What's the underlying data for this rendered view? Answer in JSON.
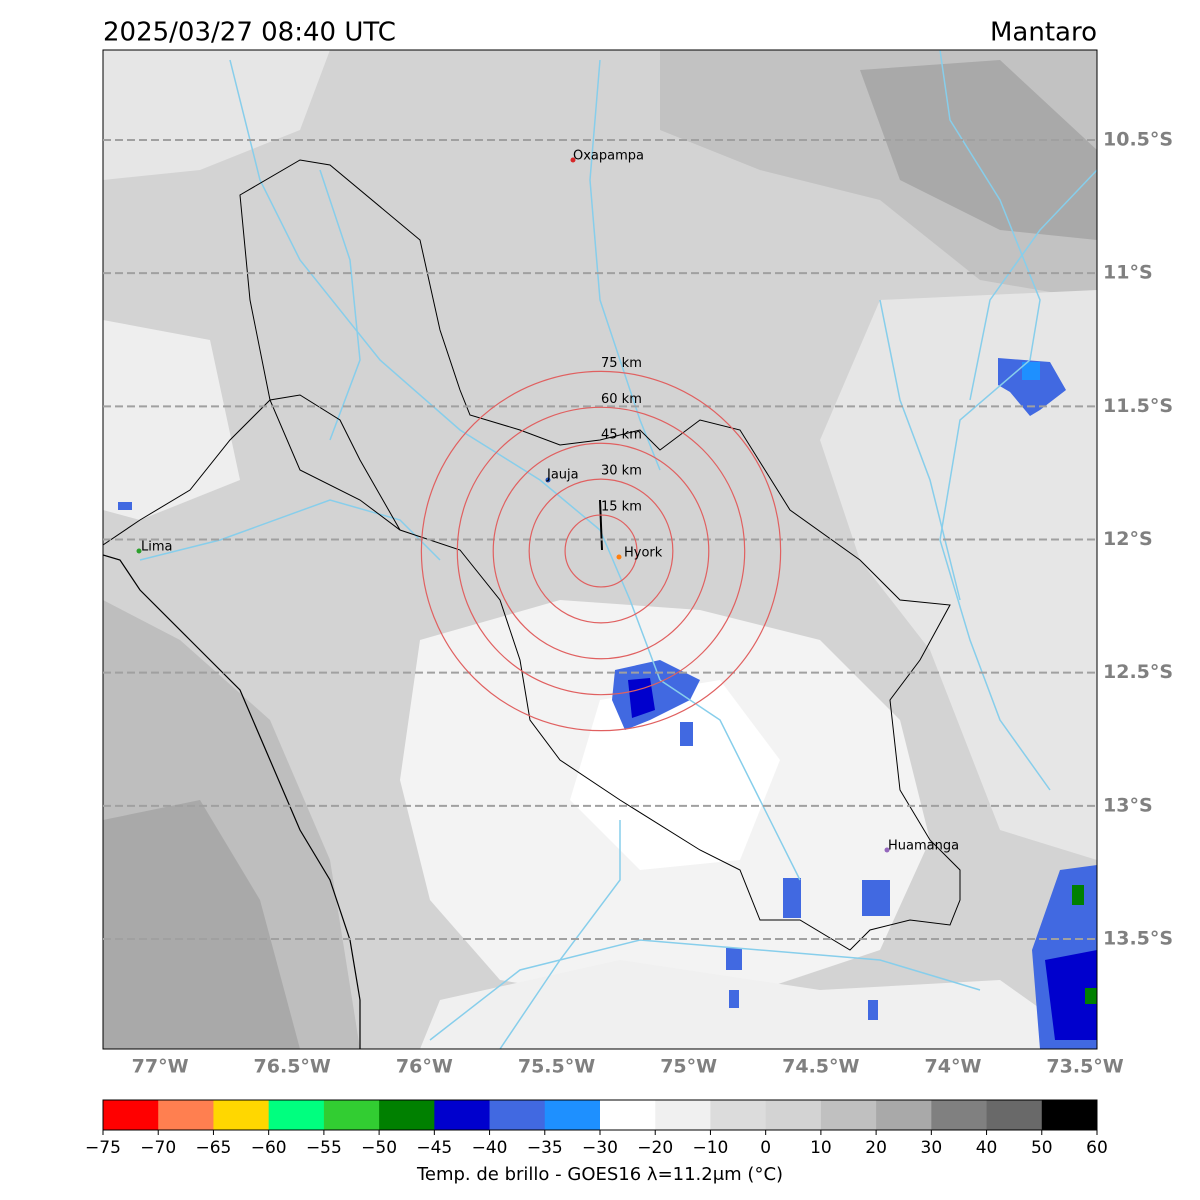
{
  "title": "2025/03/27 08:40 UTC",
  "location": "Mantaro",
  "lon_lim": [
    -77.216,
    -73.455
  ],
  "lat_lim": [
    -13.913,
    -10.162
  ],
  "lon_ticks": [
    {
      "value": -77,
      "label": "77°W"
    },
    {
      "value": -76.5,
      "label": "76.5°W"
    },
    {
      "value": -76,
      "label": "76°W"
    },
    {
      "value": -75.5,
      "label": "75.5°W"
    },
    {
      "value": -75,
      "label": "75°W"
    },
    {
      "value": -74.5,
      "label": "74.5°W"
    },
    {
      "value": -74,
      "label": "74°W"
    },
    {
      "value": -73.5,
      "label": "73.5°W"
    }
  ],
  "lat_ticks": [
    {
      "value": -10.5,
      "label": "10.5°S"
    },
    {
      "value": -11,
      "label": "11°S"
    },
    {
      "value": -11.5,
      "label": "11.5°S"
    },
    {
      "value": -12,
      "label": "12°S"
    },
    {
      "value": -12.5,
      "label": "12.5°S"
    },
    {
      "value": -13,
      "label": "13°S"
    },
    {
      "value": -13.5,
      "label": "13.5°S"
    }
  ],
  "grid": true,
  "cities": [
    {
      "name": "Oxapampa",
      "color": "#d62728"
    },
    {
      "name": "Jauja",
      "color": "#1f4fb4"
    },
    {
      "name": "Lima",
      "color": "#2ca02c"
    },
    {
      "name": "Hyork",
      "color": "#ff7f0e"
    },
    {
      "name": "Huamanga",
      "color": "#9467bd"
    }
  ],
  "rings": [
    {
      "value": 15,
      "label": "15 km"
    },
    {
      "value": 30,
      "label": "30 km"
    },
    {
      "value": 45,
      "label": "45 km"
    },
    {
      "value": 60,
      "label": "60 km"
    },
    {
      "value": 75,
      "label": "75 km"
    }
  ],
  "ring_color": "#e06060",
  "colorbar": {
    "label": "Temp. de brillo - GOES16 λ=11.2μm (°C)",
    "ticks": [
      {
        "value": -75,
        "label": "−75"
      },
      {
        "value": -70,
        "label": "−70"
      },
      {
        "value": -65,
        "label": "−65"
      },
      {
        "value": -60,
        "label": "−60"
      },
      {
        "value": -55,
        "label": "−55"
      },
      {
        "value": -50,
        "label": "−50"
      },
      {
        "value": -45,
        "label": "−45"
      },
      {
        "value": -40,
        "label": "−40"
      },
      {
        "value": -35,
        "label": "−35"
      },
      {
        "value": -30,
        "label": "−30"
      },
      {
        "value": -20,
        "label": "−20"
      },
      {
        "value": -10,
        "label": "−10"
      },
      0,
      10,
      20,
      30,
      40,
      50,
      60
    ],
    "colors": [
      "#ff0000",
      "#ff7f50",
      "#ffd700",
      "#00ff7f",
      "#32cd32",
      "#008000",
      "#0000cd",
      "#4169e1",
      "#1e90ff",
      "#ffffff",
      "#f0f0f0",
      "#dcdcdc",
      "#d3d3d3",
      "#c0c0c0",
      "#a9a9a9",
      "#808080",
      "#696969",
      "#000000"
    ]
  }
}
